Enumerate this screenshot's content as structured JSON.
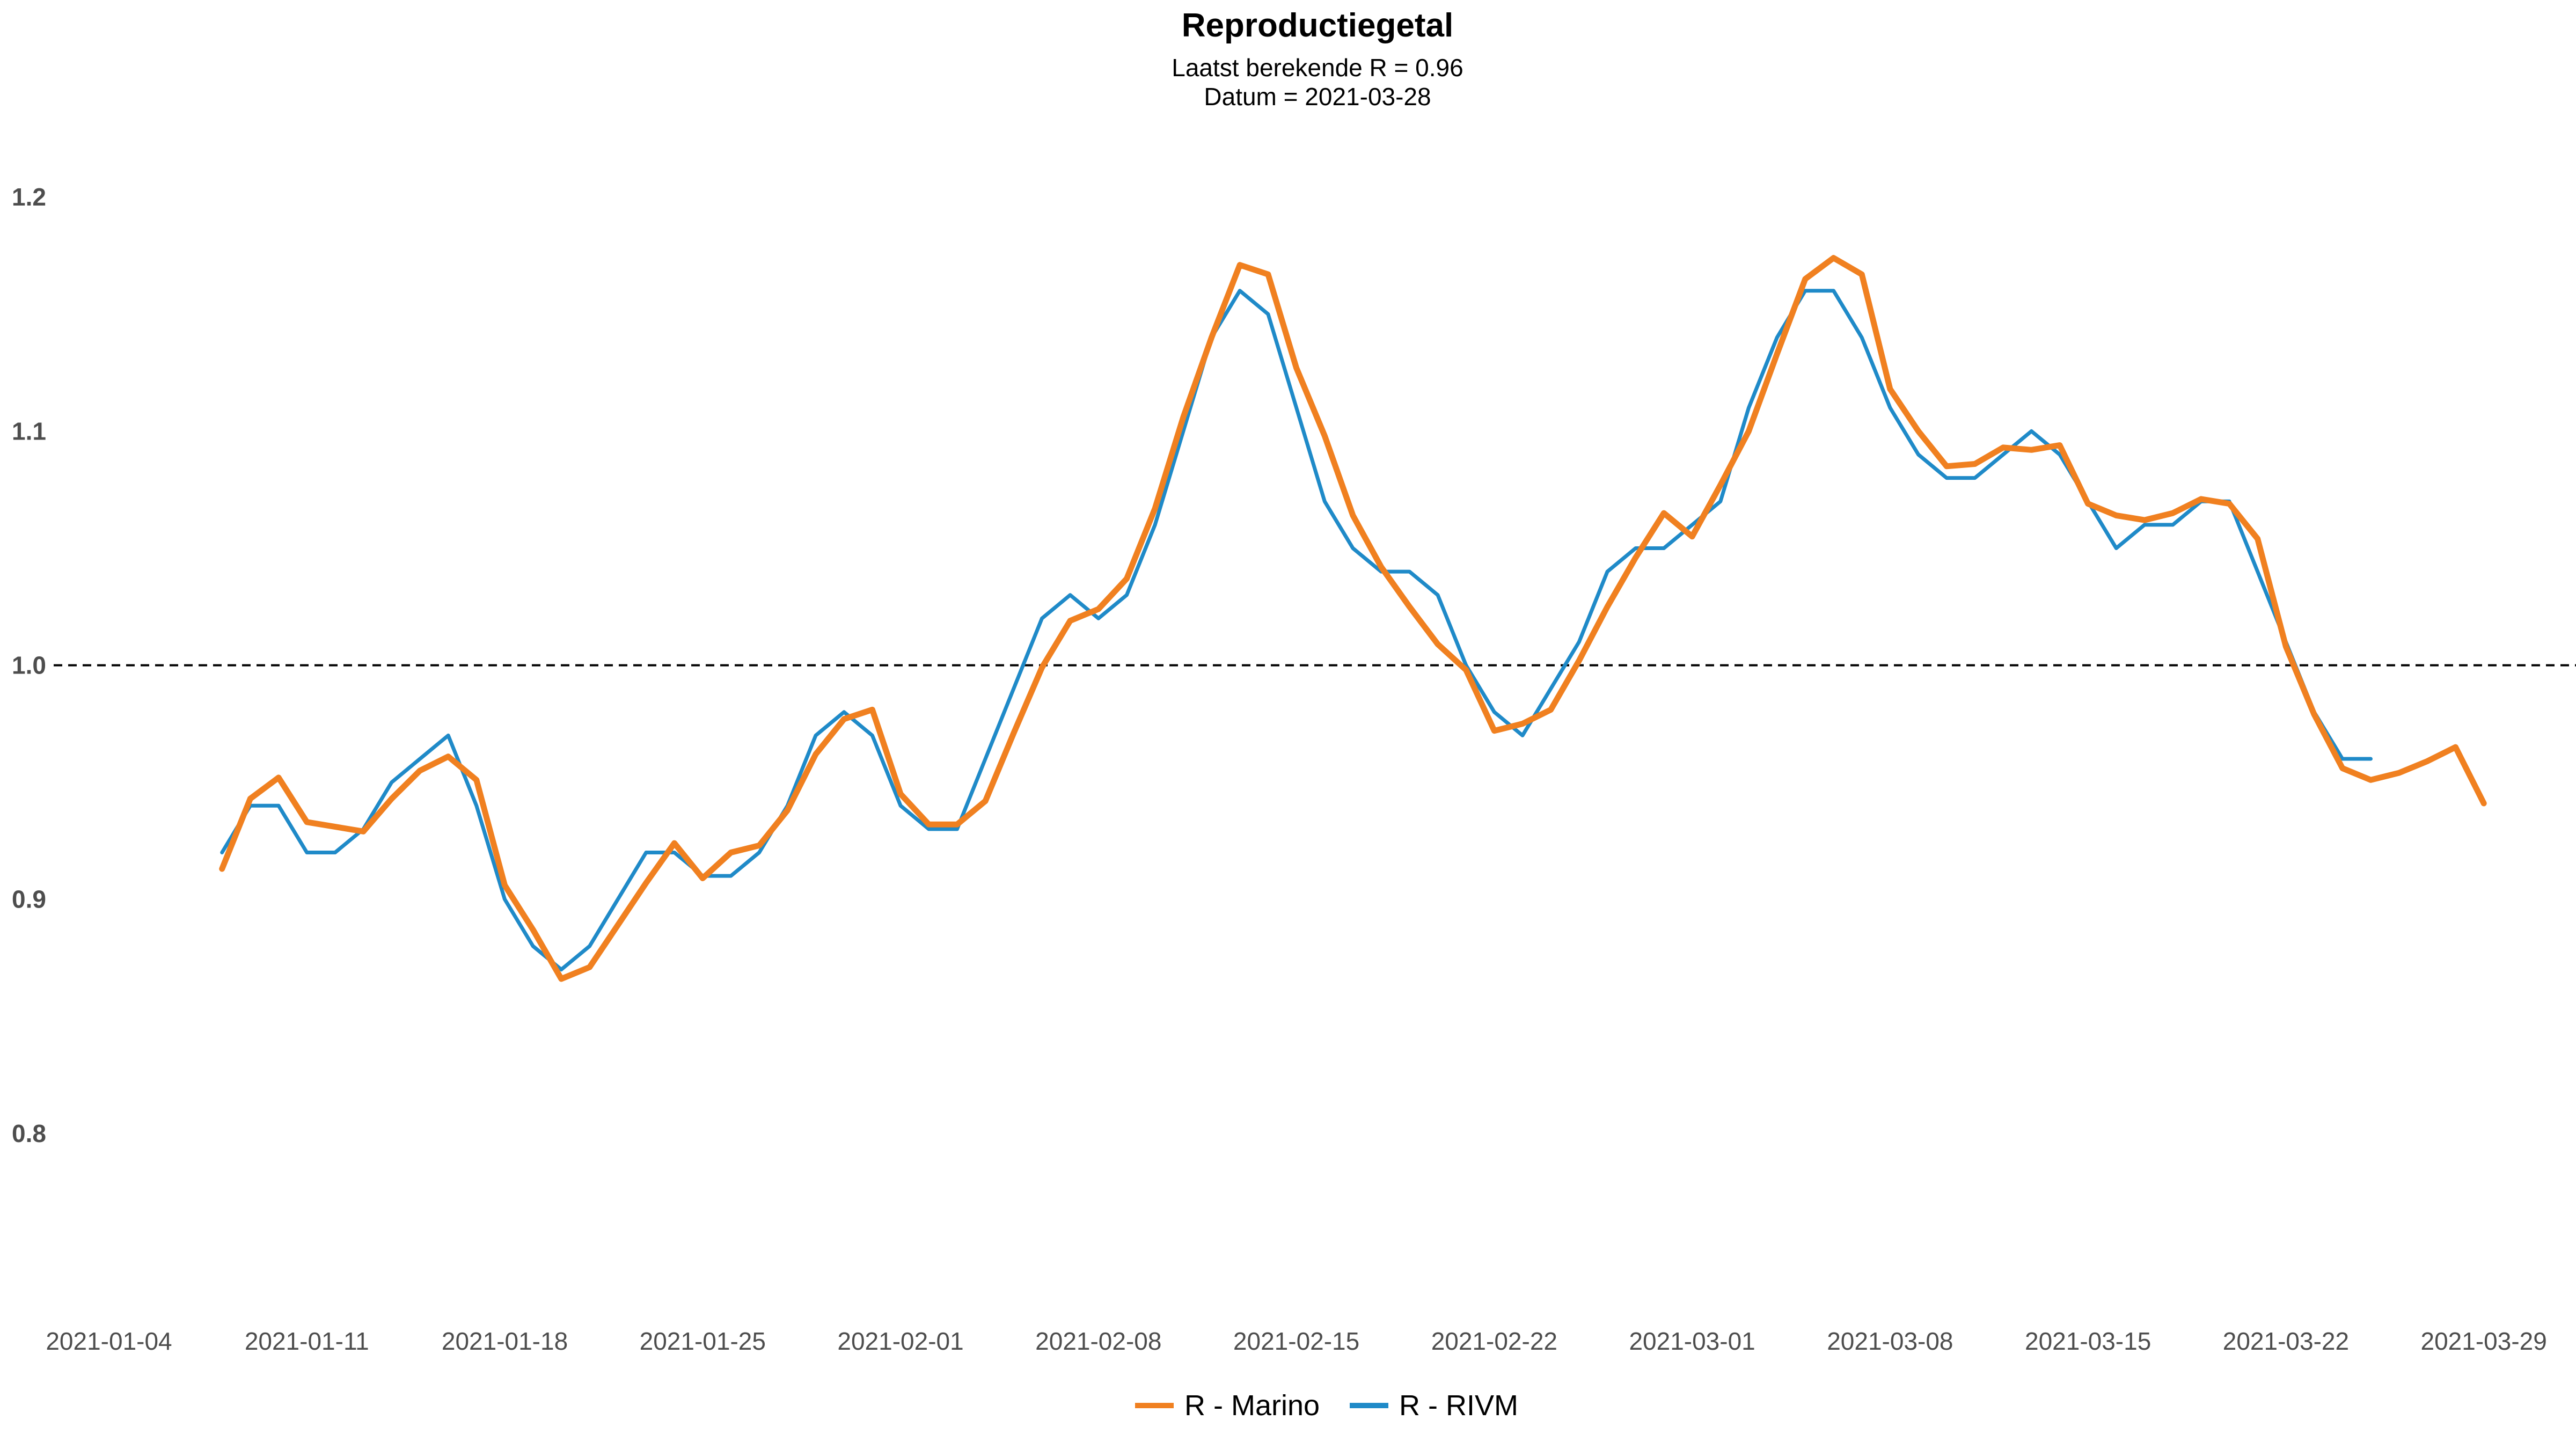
{
  "chart_data": {
    "type": "line",
    "title": "Reproductiegetal",
    "subtitle_line1": "Laatst berekende R = 0.96",
    "subtitle_line2": "Datum = 2021-03-28",
    "xlabel": "",
    "ylabel": "",
    "x_start": "2021-01-04",
    "xlim": [
      "2021-01-04",
      "2021-03-31"
    ],
    "ylim": [
      0.75,
      1.22
    ],
    "x_ticks": [
      "2021-01-04",
      "2021-01-11",
      "2021-01-18",
      "2021-01-25",
      "2021-02-01",
      "2021-02-08",
      "2021-02-15",
      "2021-02-22",
      "2021-03-01",
      "2021-03-08",
      "2021-03-15",
      "2021-03-22",
      "2021-03-29"
    ],
    "y_ticks": [
      {
        "value": 0.8,
        "label": "0.8"
      },
      {
        "value": 0.9,
        "label": "0.9"
      },
      {
        "value": 1.0,
        "label": "1.0"
      },
      {
        "value": 1.1,
        "label": "1.1"
      },
      {
        "value": 1.2,
        "label": "1.2"
      }
    ],
    "reference_line": 1.0,
    "grid": false,
    "legend_position": "bottom",
    "series": [
      {
        "name": "R - Marino",
        "color": "#F08020",
        "points": [
          [
            "2021-01-08",
            0.913
          ],
          [
            "2021-01-09",
            0.943
          ],
          [
            "2021-01-10",
            0.952
          ],
          [
            "2021-01-11",
            0.933
          ],
          [
            "2021-01-13",
            0.929
          ],
          [
            "2021-01-14",
            0.943
          ],
          [
            "2021-01-15",
            0.955
          ],
          [
            "2021-01-16",
            0.961
          ],
          [
            "2021-01-17",
            0.951
          ],
          [
            "2021-01-18",
            0.906
          ],
          [
            "2021-01-19",
            0.887
          ],
          [
            "2021-01-20",
            0.866
          ],
          [
            "2021-01-21",
            0.871
          ],
          [
            "2021-01-22",
            0.889
          ],
          [
            "2021-01-23",
            0.907
          ],
          [
            "2021-01-24",
            0.924
          ],
          [
            "2021-01-25",
            0.909
          ],
          [
            "2021-01-26",
            0.92
          ],
          [
            "2021-01-27",
            0.923
          ],
          [
            "2021-01-28",
            0.938
          ],
          [
            "2021-01-29",
            0.962
          ],
          [
            "2021-01-30",
            0.977
          ],
          [
            "2021-01-31",
            0.981
          ],
          [
            "2021-02-01",
            0.945
          ],
          [
            "2021-02-02",
            0.932
          ],
          [
            "2021-02-03",
            0.932
          ],
          [
            "2021-02-04",
            0.942
          ],
          [
            "2021-02-05",
            0.971
          ],
          [
            "2021-02-06",
            0.999
          ],
          [
            "2021-02-07",
            1.019
          ],
          [
            "2021-02-08",
            1.024
          ],
          [
            "2021-02-09",
            1.037
          ],
          [
            "2021-02-10",
            1.067
          ],
          [
            "2021-02-11",
            1.106
          ],
          [
            "2021-02-12",
            1.14
          ],
          [
            "2021-02-13",
            1.171
          ],
          [
            "2021-02-14",
            1.167
          ],
          [
            "2021-02-15",
            1.127
          ],
          [
            "2021-02-16",
            1.098
          ],
          [
            "2021-02-17",
            1.064
          ],
          [
            "2021-02-18",
            1.042
          ],
          [
            "2021-02-19",
            1.025
          ],
          [
            "2021-02-20",
            1.009
          ],
          [
            "2021-02-21",
            0.998
          ],
          [
            "2021-02-22",
            0.972
          ],
          [
            "2021-02-23",
            0.975
          ],
          [
            "2021-02-24",
            0.981
          ],
          [
            "2021-02-25",
            1.002
          ],
          [
            "2021-02-26",
            1.025
          ],
          [
            "2021-02-27",
            1.046
          ],
          [
            "2021-02-28",
            1.065
          ],
          [
            "2021-03-01",
            1.055
          ],
          [
            "2021-03-02",
            1.077
          ],
          [
            "2021-03-03",
            1.1
          ],
          [
            "2021-03-04",
            1.133
          ],
          [
            "2021-03-05",
            1.165
          ],
          [
            "2021-03-06",
            1.174
          ],
          [
            "2021-03-07",
            1.167
          ],
          [
            "2021-03-08",
            1.118
          ],
          [
            "2021-03-09",
            1.1
          ],
          [
            "2021-03-10",
            1.085
          ],
          [
            "2021-03-11",
            1.086
          ],
          [
            "2021-03-12",
            1.093
          ],
          [
            "2021-03-13",
            1.092
          ],
          [
            "2021-03-14",
            1.094
          ],
          [
            "2021-03-15",
            1.069
          ],
          [
            "2021-03-16",
            1.064
          ],
          [
            "2021-03-17",
            1.062
          ],
          [
            "2021-03-18",
            1.065
          ],
          [
            "2021-03-19",
            1.071
          ],
          [
            "2021-03-20",
            1.069
          ],
          [
            "2021-03-21",
            1.054
          ],
          [
            "2021-03-22",
            1.008
          ],
          [
            "2021-03-23",
            0.979
          ],
          [
            "2021-03-24",
            0.956
          ],
          [
            "2021-03-25",
            0.951
          ],
          [
            "2021-03-26",
            0.954
          ],
          [
            "2021-03-27",
            0.959
          ],
          [
            "2021-03-28",
            0.965
          ],
          [
            "2021-03-29",
            0.941
          ]
        ]
      },
      {
        "name": "R - RIVM",
        "color": "#1F8AC8",
        "points": [
          [
            "2021-01-08",
            0.92
          ],
          [
            "2021-01-09",
            0.94
          ],
          [
            "2021-01-10",
            0.94
          ],
          [
            "2021-01-11",
            0.92
          ],
          [
            "2021-01-12",
            0.92
          ],
          [
            "2021-01-13",
            0.93
          ],
          [
            "2021-01-14",
            0.95
          ],
          [
            "2021-01-15",
            0.96
          ],
          [
            "2021-01-16",
            0.97
          ],
          [
            "2021-01-17",
            0.94
          ],
          [
            "2021-01-18",
            0.9
          ],
          [
            "2021-01-19",
            0.88
          ],
          [
            "2021-01-20",
            0.87
          ],
          [
            "2021-01-21",
            0.88
          ],
          [
            "2021-01-22",
            0.9
          ],
          [
            "2021-01-23",
            0.92
          ],
          [
            "2021-01-24",
            0.92
          ],
          [
            "2021-01-25",
            0.91
          ],
          [
            "2021-01-26",
            0.91
          ],
          [
            "2021-01-27",
            0.92
          ],
          [
            "2021-01-28",
            0.94
          ],
          [
            "2021-01-29",
            0.97
          ],
          [
            "2021-01-30",
            0.98
          ],
          [
            "2021-01-31",
            0.97
          ],
          [
            "2021-02-01",
            0.94
          ],
          [
            "2021-02-02",
            0.93
          ],
          [
            "2021-02-03",
            0.93
          ],
          [
            "2021-02-04",
            0.96
          ],
          [
            "2021-02-05",
            0.99
          ],
          [
            "2021-02-06",
            1.02
          ],
          [
            "2021-02-07",
            1.03
          ],
          [
            "2021-02-08",
            1.02
          ],
          [
            "2021-02-09",
            1.03
          ],
          [
            "2021-02-10",
            1.06
          ],
          [
            "2021-02-11",
            1.1
          ],
          [
            "2021-02-12",
            1.14
          ],
          [
            "2021-02-13",
            1.16
          ],
          [
            "2021-02-14",
            1.15
          ],
          [
            "2021-02-15",
            1.11
          ],
          [
            "2021-02-16",
            1.07
          ],
          [
            "2021-02-17",
            1.05
          ],
          [
            "2021-02-18",
            1.04
          ],
          [
            "2021-02-19",
            1.04
          ],
          [
            "2021-02-20",
            1.03
          ],
          [
            "2021-02-21",
            1.0
          ],
          [
            "2021-02-22",
            0.98
          ],
          [
            "2021-02-23",
            0.97
          ],
          [
            "2021-02-24",
            0.99
          ],
          [
            "2021-02-25",
            1.01
          ],
          [
            "2021-02-26",
            1.04
          ],
          [
            "2021-02-27",
            1.05
          ],
          [
            "2021-02-28",
            1.05
          ],
          [
            "2021-03-01",
            1.06
          ],
          [
            "2021-03-02",
            1.07
          ],
          [
            "2021-03-03",
            1.11
          ],
          [
            "2021-03-04",
            1.14
          ],
          [
            "2021-03-05",
            1.16
          ],
          [
            "2021-03-06",
            1.16
          ],
          [
            "2021-03-07",
            1.14
          ],
          [
            "2021-03-08",
            1.11
          ],
          [
            "2021-03-09",
            1.09
          ],
          [
            "2021-03-10",
            1.08
          ],
          [
            "2021-03-11",
            1.08
          ],
          [
            "2021-03-12",
            1.09
          ],
          [
            "2021-03-13",
            1.1
          ],
          [
            "2021-03-14",
            1.09
          ],
          [
            "2021-03-15",
            1.07
          ],
          [
            "2021-03-16",
            1.05
          ],
          [
            "2021-03-17",
            1.06
          ],
          [
            "2021-03-18",
            1.06
          ],
          [
            "2021-03-19",
            1.07
          ],
          [
            "2021-03-20",
            1.07
          ],
          [
            "2021-03-21",
            1.04
          ],
          [
            "2021-03-22",
            1.01
          ],
          [
            "2021-03-23",
            0.98
          ],
          [
            "2021-03-24",
            0.96
          ],
          [
            "2021-03-25",
            0.96
          ]
        ]
      }
    ]
  }
}
